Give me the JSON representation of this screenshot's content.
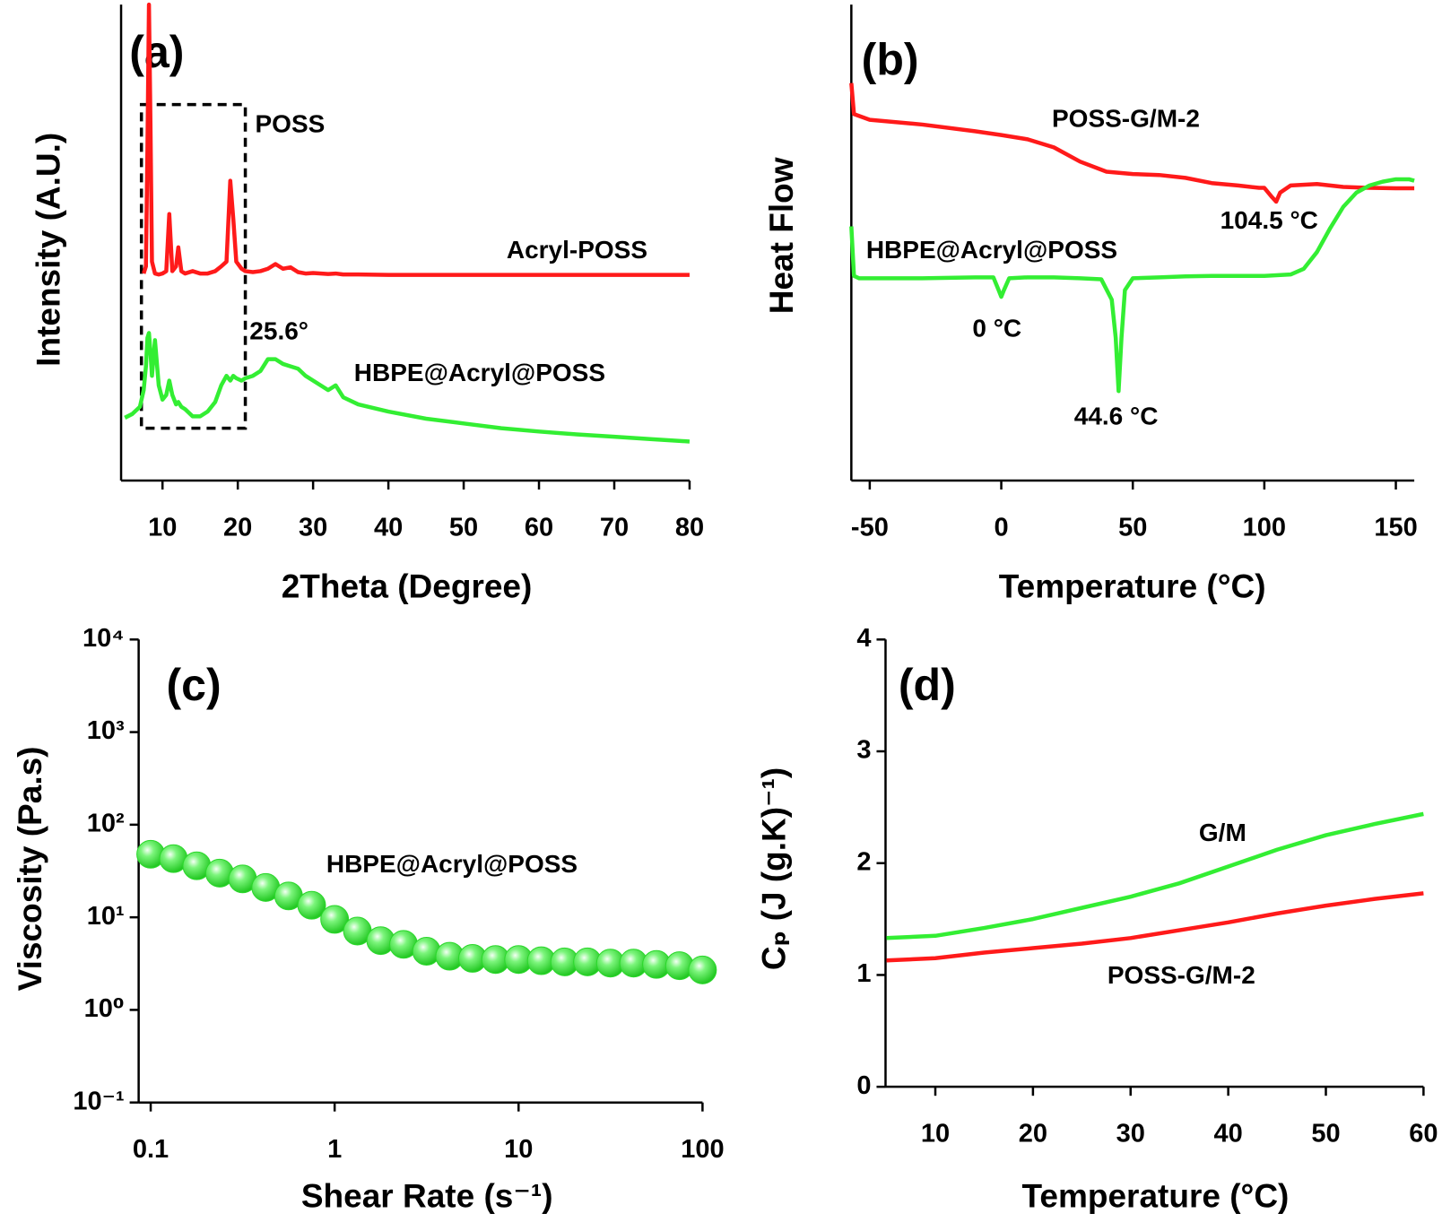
{
  "chart_data": [
    {
      "type": "line",
      "panel_label": "(a)",
      "xlabel": "2Theta (Degree)",
      "ylabel": "Intensity (A.U.)",
      "xlim": [
        4.5,
        80
      ],
      "ylim": [
        0,
        100
      ],
      "xticks": [
        10,
        20,
        30,
        40,
        50,
        60,
        70,
        80
      ],
      "x": [
        5,
        6,
        7,
        7.5,
        7.8,
        8.0,
        8.2,
        8.4,
        8.6,
        9,
        9.5,
        10,
        10.5,
        10.9,
        11.3,
        11.8,
        12.1,
        12.5,
        13,
        14,
        15,
        16,
        17,
        17.8,
        18.5,
        19.0,
        19.4,
        19.8,
        20.5,
        21,
        22,
        23,
        24,
        25,
        26,
        27,
        28,
        29,
        30,
        32,
        33,
        34,
        36,
        40,
        45,
        50,
        55,
        60,
        65,
        70,
        75,
        80
      ],
      "series": [
        {
          "name": "Acryl-POSS",
          "color": "#ff1a1a",
          "values": [
            null,
            null,
            null,
            43.5,
            45,
            70,
            100,
            75,
            46,
            43.5,
            43.3,
            43.5,
            44,
            56,
            44,
            45,
            49,
            44,
            43.5,
            44,
            43.5,
            43.5,
            44,
            45,
            46,
            63,
            55,
            46,
            44.5,
            44,
            43.8,
            44,
            44.5,
            45.5,
            44.5,
            44.8,
            43.8,
            43.5,
            43.6,
            43.4,
            43.5,
            43.3,
            43.3,
            43.2,
            43.2,
            43.2,
            43.2,
            43.2,
            43.2,
            43.2,
            43.2,
            43.2
          ]
        },
        {
          "name": "HBPE@Acryl@POSS",
          "color": "#33ee33",
          "values": [
            13.2,
            14,
            15.5,
            19,
            24,
            30,
            31,
            27,
            22,
            29.5,
            20,
            17,
            18,
            21,
            18,
            16,
            16.5,
            15.5,
            15,
            13.5,
            13.5,
            14.5,
            16.5,
            20,
            22,
            21,
            22,
            21.5,
            21,
            21.5,
            22,
            23,
            25.5,
            25.5,
            24.5,
            24,
            23.5,
            22,
            21,
            19,
            20,
            17.5,
            16,
            14.5,
            13,
            12,
            11,
            10.3,
            9.7,
            9.2,
            8.7,
            8.2
          ]
        }
      ],
      "highlight_box": {
        "x": [
          7.2,
          21
        ],
        "y": [
          11,
          79
        ]
      },
      "annotations": [
        "POSS",
        "Acryl-POSS",
        "HBPE@Acryl@POSS",
        "25.6°"
      ]
    },
    {
      "type": "line",
      "panel_label": "(b)",
      "xlabel": "Temperature (°C)",
      "ylabel": "Heat Flow",
      "xlim": [
        -57,
        157
      ],
      "ylim": [
        0,
        100
      ],
      "xticks": [
        -50,
        0,
        50,
        100,
        150
      ],
      "series": [
        {
          "name": "POSS-G/M-2",
          "color": "#ff1a1a",
          "x": [
            -57,
            -56,
            -50,
            -30,
            -10,
            0,
            10,
            20,
            30,
            40,
            50,
            60,
            70,
            80,
            90,
            98,
            100,
            103,
            104.5,
            106,
            110,
            120,
            130,
            140,
            150,
            157
          ],
          "values": [
            83.5,
            77,
            75.8,
            74.8,
            73.4,
            72.6,
            71.7,
            70,
            67,
            64.9,
            64.4,
            64.2,
            63.6,
            62.5,
            62,
            61.5,
            61.5,
            59.5,
            58.6,
            60.5,
            62,
            62.3,
            61.7,
            61.5,
            61.4,
            61.4
          ]
        },
        {
          "name": "HBPE@Acryl@POSS",
          "color": "#33ee33",
          "x": [
            -57,
            -56,
            -54,
            -50,
            -30,
            -10,
            -3,
            -1,
            0,
            1,
            3,
            10,
            20,
            30,
            38,
            42,
            43.5,
            44.6,
            45.7,
            47,
            50,
            60,
            70,
            80,
            90,
            100,
            110,
            115,
            120,
            125,
            130,
            135,
            140,
            145,
            150,
            155,
            157
          ],
          "values": [
            53.4,
            43,
            42.5,
            42.5,
            42.5,
            42.7,
            42.7,
            40,
            38.6,
            40,
            42.5,
            42.7,
            42.7,
            42.5,
            42.3,
            38,
            30,
            18.8,
            30,
            40,
            42.5,
            42.7,
            42.9,
            43,
            43,
            43,
            43.3,
            44.5,
            48,
            53,
            57.5,
            60.5,
            62,
            62.8,
            63.3,
            63.3,
            63
          ]
        }
      ],
      "annotations": [
        "POSS-G/M-2",
        "104.5 °C",
        "HBPE@Acryl@POSS",
        "0 °C",
        "44.6 °C"
      ]
    },
    {
      "type": "scatter",
      "panel_label": "(c)",
      "xlabel": "Shear Rate (s⁻¹)",
      "ylabel": "Viscosity (Pa.s)",
      "xlog": true,
      "ylog": true,
      "xlim": [
        0.086,
        100
      ],
      "ylim": [
        0.1,
        10000
      ],
      "xticks": [
        0.1,
        1,
        10,
        100
      ],
      "yticks": [
        {
          "value": 0.1,
          "label": "10⁻¹"
        },
        {
          "value": 1,
          "label": "10⁰"
        },
        {
          "value": 10,
          "label": "10¹"
        },
        {
          "value": 100,
          "label": "10²"
        },
        {
          "value": 1000,
          "label": "10³"
        },
        {
          "value": 10000,
          "label": "10⁴"
        }
      ],
      "x": [
        0.1,
        0.133,
        0.178,
        0.237,
        0.316,
        0.422,
        0.562,
        0.75,
        1,
        1.33,
        1.78,
        2.37,
        3.16,
        4.22,
        5.62,
        7.5,
        10,
        13.3,
        17.8,
        23.7,
        31.6,
        42.2,
        56.2,
        75,
        100
      ],
      "series": [
        {
          "name": "HBPE@Acryl@POSS",
          "color": "#33ee33",
          "values": [
            48,
            43,
            36,
            30,
            26,
            21,
            17,
            13.5,
            9.5,
            7.1,
            5.6,
            5.1,
            4.3,
            3.8,
            3.6,
            3.5,
            3.5,
            3.4,
            3.3,
            3.3,
            3.2,
            3.2,
            3.1,
            3.0,
            2.7
          ]
        }
      ],
      "annotations": [
        "HBPE@Acryl@POSS"
      ]
    },
    {
      "type": "line",
      "panel_label": "(d)",
      "xlabel": "Temperature (°C)",
      "ylabel": "Cₚ (J (g.K)⁻¹)",
      "xlim": [
        4.9,
        60
      ],
      "ylim": [
        0,
        4
      ],
      "xticks": [
        10,
        20,
        30,
        40,
        50,
        60
      ],
      "yticks": [
        0,
        1,
        2,
        3,
        4
      ],
      "x": [
        5,
        10,
        15,
        20,
        25,
        30,
        35,
        40,
        45,
        50,
        55,
        60
      ],
      "series": [
        {
          "name": "G/M",
          "color": "#33ee33",
          "values": [
            1.33,
            1.35,
            1.42,
            1.5,
            1.6,
            1.7,
            1.82,
            1.97,
            2.12,
            2.25,
            2.35,
            2.44
          ]
        },
        {
          "name": "POSS-G/M-2",
          "color": "#ff1a1a",
          "values": [
            1.13,
            1.15,
            1.2,
            1.24,
            1.28,
            1.33,
            1.4,
            1.47,
            1.55,
            1.62,
            1.68,
            1.73
          ]
        }
      ],
      "annotations": [
        "G/M",
        "POSS-G/M-2"
      ]
    }
  ]
}
